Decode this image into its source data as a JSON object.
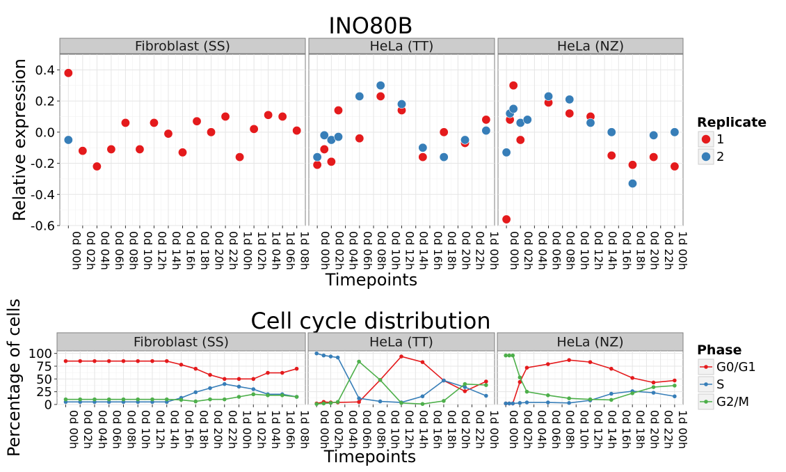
{
  "chart_data": [
    {
      "type": "scatter",
      "title": "INO80B",
      "xlabel": "Timepoints",
      "ylabel": "Relative expression",
      "ylim": [
        -0.6,
        0.5
      ],
      "yticks": [
        "-0.6",
        "-0.4",
        "-0.2",
        "0.0",
        "0.2",
        "0.4"
      ],
      "grid": true,
      "legend": {
        "title": "Replicate",
        "position": "right",
        "items": [
          {
            "label": "1",
            "color": "#e41a1c"
          },
          {
            "label": "2",
            "color": "#377eb8"
          }
        ]
      },
      "panels": [
        {
          "label": "Fibroblast (SS)",
          "categories": [
            "0d 00h",
            "0d 02h",
            "0d 04h",
            "0d 06h",
            "0d 08h",
            "0d 10h",
            "0d 12h",
            "0d 14h",
            "0d 16h",
            "0d 18h",
            "0d 20h",
            "0d 22h",
            "1d 00h",
            "1d 02h",
            "1d 04h",
            "1d 06h",
            "1d 08h"
          ],
          "series": [
            {
              "name": "1",
              "color": "#e41a1c",
              "points": [
                {
                  "x": "0d 00h",
                  "y": 0.38
                },
                {
                  "x": "0d 02h",
                  "y": -0.12
                },
                {
                  "x": "0d 04h",
                  "y": -0.22
                },
                {
                  "x": "0d 06h",
                  "y": -0.11
                },
                {
                  "x": "0d 08h",
                  "y": 0.06
                },
                {
                  "x": "0d 10h",
                  "y": -0.11
                },
                {
                  "x": "0d 12h",
                  "y": 0.06
                },
                {
                  "x": "0d 14h",
                  "y": -0.01
                },
                {
                  "x": "0d 16h",
                  "y": -0.13
                },
                {
                  "x": "0d 18h",
                  "y": 0.07
                },
                {
                  "x": "0d 20h",
                  "y": 0.0
                },
                {
                  "x": "0d 22h",
                  "y": 0.1
                },
                {
                  "x": "1d 00h",
                  "y": -0.16
                },
                {
                  "x": "1d 02h",
                  "y": 0.02
                },
                {
                  "x": "1d 04h",
                  "y": 0.11
                },
                {
                  "x": "1d 06h",
                  "y": 0.1
                },
                {
                  "x": "1d 08h",
                  "y": 0.01
                }
              ]
            },
            {
              "name": "2",
              "color": "#377eb8",
              "points": [
                {
                  "x": "0d 00h",
                  "y": -0.05
                }
              ]
            }
          ]
        },
        {
          "label": "HeLa (TT)",
          "categories": [
            "0d 00h",
            "0d 02h",
            "0d 04h",
            "0d 06h",
            "0d 08h",
            "0d 10h",
            "0d 12h",
            "0d 14h",
            "0d 16h",
            "0d 18h",
            "0d 20h",
            "0d 22h",
            "1d 00h"
          ],
          "series": [
            {
              "name": "1",
              "color": "#e41a1c",
              "points": [
                {
                  "x": 0.0,
                  "y": -0.21
                },
                {
                  "x": 0.5,
                  "y": -0.11
                },
                {
                  "x": 1.0,
                  "y": -0.19
                },
                {
                  "x": 1.5,
                  "y": 0.14
                },
                {
                  "x": 3.0,
                  "y": -0.04
                },
                {
                  "x": 4.5,
                  "y": 0.23
                },
                {
                  "x": 6.0,
                  "y": 0.14
                },
                {
                  "x": 7.5,
                  "y": -0.16
                },
                {
                  "x": 9.0,
                  "y": 0.0
                },
                {
                  "x": 10.5,
                  "y": -0.07
                },
                {
                  "x": 12.0,
                  "y": 0.08
                }
              ]
            },
            {
              "name": "2",
              "color": "#377eb8",
              "points": [
                {
                  "x": 0.0,
                  "y": -0.16
                },
                {
                  "x": 0.5,
                  "y": -0.02
                },
                {
                  "x": 1.0,
                  "y": -0.05
                },
                {
                  "x": 1.5,
                  "y": -0.03
                },
                {
                  "x": 3.0,
                  "y": 0.23
                },
                {
                  "x": 4.5,
                  "y": 0.3
                },
                {
                  "x": 6.0,
                  "y": 0.18
                },
                {
                  "x": 7.5,
                  "y": -0.1
                },
                {
                  "x": 9.0,
                  "y": -0.16
                },
                {
                  "x": 10.5,
                  "y": -0.05
                },
                {
                  "x": 12.0,
                  "y": 0.01
                }
              ]
            }
          ]
        },
        {
          "label": "HeLa (NZ)",
          "categories": [
            "0d 00h",
            "0d 02h",
            "0d 04h",
            "0d 06h",
            "0d 08h",
            "0d 10h",
            "0d 12h",
            "0d 14h",
            "0d 16h",
            "0d 18h",
            "0d 20h",
            "0d 22h",
            "1d 00h"
          ],
          "series": [
            {
              "name": "1",
              "color": "#e41a1c",
              "points": [
                {
                  "x": 0.0,
                  "y": -0.56
                },
                {
                  "x": 0.25,
                  "y": 0.08
                },
                {
                  "x": 0.5,
                  "y": 0.3
                },
                {
                  "x": 1.0,
                  "y": -0.05
                },
                {
                  "x": 3.0,
                  "y": 0.19
                },
                {
                  "x": 4.5,
                  "y": 0.12
                },
                {
                  "x": 6.0,
                  "y": 0.1
                },
                {
                  "x": 7.5,
                  "y": -0.15
                },
                {
                  "x": 9.0,
                  "y": -0.21
                },
                {
                  "x": 10.5,
                  "y": -0.16
                },
                {
                  "x": 12.0,
                  "y": -0.22
                }
              ]
            },
            {
              "name": "2",
              "color": "#377eb8",
              "points": [
                {
                  "x": 0.0,
                  "y": -0.13
                },
                {
                  "x": 0.25,
                  "y": 0.12
                },
                {
                  "x": 0.5,
                  "y": 0.15
                },
                {
                  "x": 1.0,
                  "y": 0.06
                },
                {
                  "x": 1.5,
                  "y": 0.08
                },
                {
                  "x": 3.0,
                  "y": 0.23
                },
                {
                  "x": 4.5,
                  "y": 0.21
                },
                {
                  "x": 6.0,
                  "y": 0.06
                },
                {
                  "x": 7.5,
                  "y": 0.0
                },
                {
                  "x": 9.0,
                  "y": -0.33
                },
                {
                  "x": 10.5,
                  "y": -0.02
                },
                {
                  "x": 12.0,
                  "y": 0.0
                }
              ]
            }
          ]
        }
      ]
    },
    {
      "type": "line",
      "title": "Cell cycle distribution",
      "xlabel": "Timepoints",
      "ylabel": "Percentage of cells",
      "ylim": [
        0,
        105
      ],
      "yticks": [
        "0",
        "25",
        "50",
        "75",
        "100"
      ],
      "grid": true,
      "legend": {
        "title": "Phase",
        "position": "right",
        "items": [
          {
            "label": "G0/G1",
            "color": "#e41a1c"
          },
          {
            "label": "S",
            "color": "#377eb8"
          },
          {
            "label": "G2/M",
            "color": "#4daf4a"
          }
        ]
      },
      "panels": [
        {
          "label": "Fibroblast (SS)",
          "categories": [
            "0d 00h",
            "0d 02h",
            "0d 04h",
            "0d 06h",
            "0d 08h",
            "0d 10h",
            "0d 12h",
            "0d 14h",
            "0d 16h",
            "0d 18h",
            "0d 20h",
            "0d 22h",
            "1d 00h",
            "1d 02h",
            "1d 04h",
            "1d 06h",
            "1d 08h"
          ],
          "x": [
            0,
            1,
            2,
            3,
            4,
            5,
            6,
            7,
            8,
            9,
            10,
            11,
            12,
            13,
            14,
            15,
            16
          ],
          "series": [
            {
              "name": "G0/G1",
              "color": "#e41a1c",
              "values": [
                85,
                85,
                85,
                85,
                85,
                85,
                85,
                85,
                78,
                70,
                58,
                50,
                50,
                50,
                62,
                62,
                70
              ]
            },
            {
              "name": "S",
              "color": "#377eb8",
              "values": [
                5,
                5,
                5,
                5,
                5,
                5,
                5,
                5,
                13,
                24,
                32,
                40,
                35,
                30,
                20,
                20,
                15
              ]
            },
            {
              "name": "G2/M",
              "color": "#4daf4a",
              "values": [
                10,
                10,
                10,
                10,
                10,
                10,
                10,
                10,
                9,
                6,
                10,
                10,
                15,
                20,
                18,
                18,
                15
              ]
            }
          ]
        },
        {
          "label": "HeLa (TT)",
          "categories": [
            "0d 00h",
            "0d 02h",
            "0d 04h",
            "0d 06h",
            "0d 08h",
            "0d 10h",
            "0d 12h",
            "0d 14h",
            "0d 16h",
            "0d 18h",
            "0d 20h",
            "0d 22h",
            "1d 00h"
          ],
          "x": [
            0,
            0.5,
            1,
            1.5,
            3,
            4.5,
            6,
            7.5,
            9,
            10.5,
            12
          ],
          "series": [
            {
              "name": "G0/G1",
              "color": "#e41a1c",
              "values": [
                2,
                5,
                4,
                4,
                5,
                48,
                94,
                83,
                47,
                26,
                45
              ]
            },
            {
              "name": "S",
              "color": "#377eb8",
              "values": [
                100,
                96,
                94,
                92,
                12,
                6,
                4,
                16,
                47,
                34,
                17
              ]
            },
            {
              "name": "G2/M",
              "color": "#4daf4a",
              "values": [
                1,
                2,
                3,
                5,
                84,
                48,
                3,
                1,
                7,
                40,
                38
              ]
            }
          ]
        },
        {
          "label": "HeLa (NZ)",
          "categories": [
            "0d 00h",
            "0d 02h",
            "0d 04h",
            "0d 06h",
            "0d 08h",
            "0d 10h",
            "0d 12h",
            "0d 14h",
            "0d 16h",
            "0d 18h",
            "0d 20h",
            "0d 22h",
            "1d 00h"
          ],
          "x": [
            0,
            0.25,
            0.5,
            1,
            1.5,
            3,
            4.5,
            6,
            7.5,
            9,
            10.5,
            12
          ],
          "series": [
            {
              "name": "G0/G1",
              "color": "#e41a1c",
              "values": [
                2,
                2,
                2,
                44,
                72,
                79,
                87,
                83,
                70,
                52,
                43,
                47
              ]
            },
            {
              "name": "S",
              "color": "#377eb8",
              "values": [
                2,
                2,
                2,
                3,
                4,
                4,
                3,
                8,
                21,
                26,
                23,
                16
              ]
            },
            {
              "name": "G2/M",
              "color": "#4daf4a",
              "values": [
                96,
                96,
                96,
                53,
                25,
                18,
                12,
                10,
                9,
                22,
                34,
                37
              ]
            }
          ]
        }
      ]
    }
  ]
}
